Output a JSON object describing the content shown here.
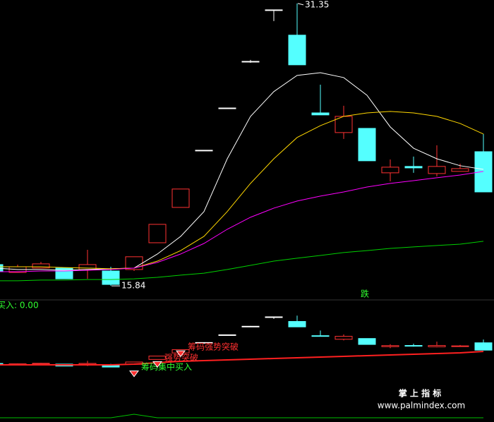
{
  "chart_data": {
    "type": "candlestick",
    "open": [
      17.01,
      16.58,
      16.82,
      16.82,
      16.74,
      16.66,
      16.74,
      18.21,
      20.15,
      23.29,
      25.61,
      28.17,
      31.0,
      29.61,
      25.34,
      24.26,
      24.49,
      22.05,
      22.4,
      22.01,
      22.13,
      23.21
    ],
    "high": [
      17.01,
      17.01,
      17.16,
      16.82,
      17.82,
      16.89,
      17.44,
      19.22,
      21.16,
      23.29,
      25.61,
      28.25,
      31.0,
      31.35,
      26.89,
      25.73,
      24.49,
      22.78,
      22.94,
      23.56,
      22.55,
      24.18
    ],
    "low": [
      16.62,
      16.58,
      16.82,
      16.23,
      16.23,
      15.84,
      16.66,
      18.21,
      20.15,
      23.29,
      25.61,
      28.09,
      30.38,
      27.98,
      25.23,
      23.91,
      22.71,
      21.58,
      22.05,
      21.85,
      22.13,
      21.0
    ],
    "close": [
      16.62,
      16.89,
      17.05,
      16.23,
      17.01,
      15.92,
      17.44,
      19.22,
      21.16,
      23.29,
      25.61,
      28.17,
      31.0,
      27.98,
      25.23,
      25.15,
      22.71,
      22.36,
      22.32,
      22.4,
      22.28,
      21.0
    ],
    "up_color": "#ff3232",
    "down_color": "#54ffff",
    "doji_color": "#ffffff",
    "ylim": [
      15.07,
      31.54
    ],
    "series": [
      {
        "color": "#ffffff",
        "values": [
          16.82,
          16.74,
          16.74,
          16.7,
          16.74,
          16.78,
          16.82,
          17.59,
          18.56,
          19.92,
          22.82,
          25.15,
          26.51,
          27.4,
          27.55,
          27.28,
          26.31,
          24.57,
          23.4,
          22.82,
          22.44,
          22.24
        ]
      },
      {
        "color": "#ffd700",
        "values": [
          16.89,
          16.89,
          16.89,
          16.85,
          16.82,
          16.78,
          16.82,
          17.2,
          17.78,
          18.56,
          19.92,
          21.47,
          22.82,
          23.99,
          24.64,
          25.15,
          25.34,
          25.42,
          25.34,
          25.15,
          24.76,
          24.18
        ]
      },
      {
        "color": "#ff00ff",
        "values": [
          16.62,
          16.62,
          16.66,
          16.66,
          16.7,
          16.74,
          16.82,
          17.13,
          17.59,
          18.17,
          18.95,
          19.61,
          20.11,
          20.5,
          20.77,
          21.0,
          21.27,
          21.47,
          21.62,
          21.78,
          21.93,
          22.13
        ]
      },
      {
        "color": "#00d000",
        "values": [
          16.12,
          16.12,
          16.16,
          16.16,
          16.19,
          16.19,
          16.23,
          16.31,
          16.43,
          16.54,
          16.74,
          16.97,
          17.2,
          17.36,
          17.51,
          17.67,
          17.78,
          17.9,
          17.98,
          18.06,
          18.13,
          18.29
        ]
      }
    ],
    "fall_label": "跌",
    "sub_label": "买入: 0.00",
    "sub_line": {
      "color": "#ff2020",
      "values": [
        16.59,
        16.59,
        16.59,
        16.59,
        16.59,
        16.59,
        16.8,
        17.23,
        17.65,
        17.86,
        18.07,
        18.29,
        18.5,
        18.71,
        18.92,
        19.13,
        19.35,
        19.56,
        19.77,
        19.98,
        20.19,
        20.62
      ]
    },
    "buy_line": {
      "color": "#00c000",
      "values": [
        0,
        0,
        0,
        0,
        0,
        0,
        1,
        0,
        0,
        0,
        0,
        0,
        0,
        0,
        0,
        0,
        0,
        0,
        0,
        0,
        0,
        0
      ]
    },
    "signals": [
      {
        "index": 6,
        "text": "筹码集中买入",
        "color": "#30ff30"
      },
      {
        "index": 7,
        "text": "强势突破",
        "color": "#ff3030"
      },
      {
        "index": 8,
        "text": "筹码强势突破",
        "color": "#ff3030"
      }
    ]
  },
  "watermark": {
    "title": "掌 上 指 标",
    "url": "www.palmindex.com"
  }
}
